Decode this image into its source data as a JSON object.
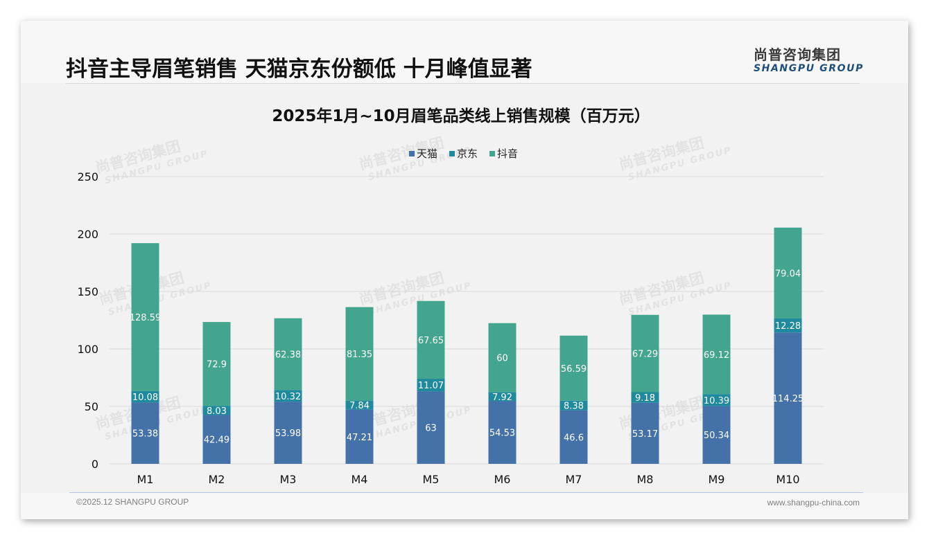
{
  "header": {
    "headline": "抖音主导眉笔销售 天猫京东份额低 十月峰值显著",
    "logo_cn": "尚普咨询集团",
    "logo_en": "SHANGPU GROUP"
  },
  "footer": {
    "copyright": "©2025.12 SHANGPU GROUP",
    "website": "www.shangpu-china.com"
  },
  "watermark": {
    "cn": "尚普咨询集团",
    "en": "SHANGPU GROUP"
  },
  "colors": {
    "tmall": "#4472a8",
    "jd": "#1f8a9e",
    "douyin": "#44a58f",
    "grid": "#d9d9d9",
    "label": "#ffffff"
  },
  "chart_data": {
    "type": "bar",
    "stacked": true,
    "title": "2025年1月~10月眉笔品类线上销售规模（百万元）",
    "xlabel": "",
    "ylabel": "",
    "categories": [
      "M1",
      "M2",
      "M3",
      "M4",
      "M5",
      "M6",
      "M7",
      "M8",
      "M9",
      "M10"
    ],
    "series": [
      {
        "name": "天猫",
        "values": [
          53.38,
          42.49,
          53.98,
          47.21,
          63,
          54.53,
          46.6,
          53.17,
          50.34,
          114.25
        ]
      },
      {
        "name": "京东",
        "values": [
          10.08,
          8.03,
          10.32,
          7.84,
          11.07,
          7.92,
          8.38,
          9.18,
          10.39,
          12.28
        ]
      },
      {
        "name": "抖音",
        "values": [
          128.59,
          72.9,
          62.38,
          81.35,
          67.65,
          60,
          56.59,
          67.29,
          69.12,
          79.04
        ]
      }
    ],
    "ylim": [
      0,
      250
    ],
    "yticks": [
      0,
      50,
      100,
      150,
      200,
      250
    ],
    "grid": true,
    "legend": "top-center",
    "data_labels": true
  }
}
